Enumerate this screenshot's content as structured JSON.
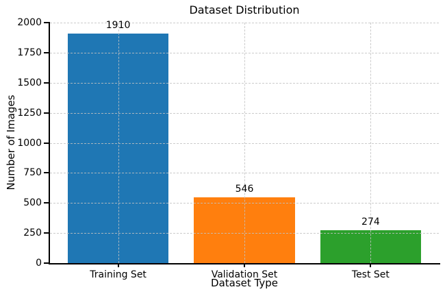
{
  "chart_data": {
    "type": "bar",
    "title": "Dataset Distribution",
    "xlabel": "Dataset Type",
    "ylabel": "Number of Images",
    "categories": [
      "Training Set",
      "Validation Set",
      "Test Set"
    ],
    "values": [
      1910,
      546,
      274
    ],
    "value_labels": [
      "1910",
      "546",
      "274"
    ],
    "bar_colors": [
      "#1f77b4",
      "#ff7f0e",
      "#2ca02c"
    ],
    "ylim": [
      0,
      2000
    ],
    "yticks": [
      0,
      250,
      500,
      750,
      1000,
      1250,
      1500,
      1750,
      2000
    ],
    "bar_width_fraction": 0.8,
    "grid": true,
    "grid_line_style": "dashed",
    "grid_color": "#c2c2c2",
    "axis_color": "#000000",
    "background_color": "#ffffff",
    "legend_position": "none"
  }
}
